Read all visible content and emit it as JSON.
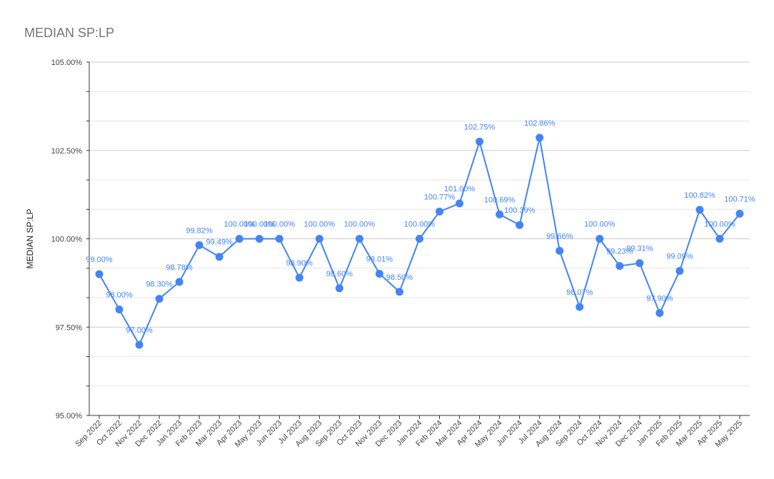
{
  "chart_data": {
    "type": "line",
    "title": "MEDIAN SP:LP",
    "xlabel": "",
    "ylabel": "MEDIAN SP:LP",
    "ylim": [
      95,
      105
    ],
    "yticks": [
      "95.00%",
      "97.50%",
      "100.00%",
      "102.50%",
      "105.00%"
    ],
    "color": "#4285f4",
    "grid": true,
    "categories": [
      "Sep 2022",
      "Oct 2022",
      "Nov 2022",
      "Dec 2022",
      "Jan 2023",
      "Feb 2023",
      "Mar 2023",
      "Apr 2023",
      "May 2023",
      "Jun 2023",
      "Jul 2023",
      "Aug 2023",
      "Sep 2023",
      "Oct 2023",
      "Nov 2023",
      "Dec 2023",
      "Jan 2024",
      "Feb 2024",
      "Mar 2024",
      "Apr 2024",
      "May 2024",
      "Jun 2024",
      "Jul 2024",
      "Aug 2024",
      "Sep 2024",
      "Oct 2024",
      "Nov 2024",
      "Dec 2024",
      "Jan 2025",
      "Feb 2025",
      "Mar 2025",
      "Apr 2025",
      "May 2025"
    ],
    "values": [
      99.0,
      98.0,
      97.0,
      98.3,
      98.78,
      99.82,
      99.49,
      100.0,
      100.0,
      100.0,
      98.9,
      100.0,
      98.6,
      100.0,
      99.01,
      98.5,
      100.0,
      100.77,
      101.0,
      102.75,
      100.69,
      100.39,
      102.86,
      99.66,
      98.07,
      100.0,
      99.23,
      99.31,
      97.9,
      99.09,
      100.82,
      100.0,
      100.71
    ],
    "labels": [
      "99.00%",
      "98.00%",
      "97.00%",
      "98.30%",
      "98.78%",
      "99.82%",
      "99.49%",
      "100.00%",
      "100.00%",
      "100.00%",
      "98.90%",
      "100.00%",
      "98.60%",
      "100.00%",
      "99.01%",
      "98.50%",
      "100.00%",
      "100.77%",
      "101.00%",
      "102.75%",
      "100.69%",
      "100.39%",
      "102.86%",
      "99.66%",
      "98.07%",
      "100.00%",
      "99.23%",
      "99.31%",
      "97.90%",
      "99.09%",
      "100.82%",
      "100.00%",
      "100.71%"
    ]
  }
}
